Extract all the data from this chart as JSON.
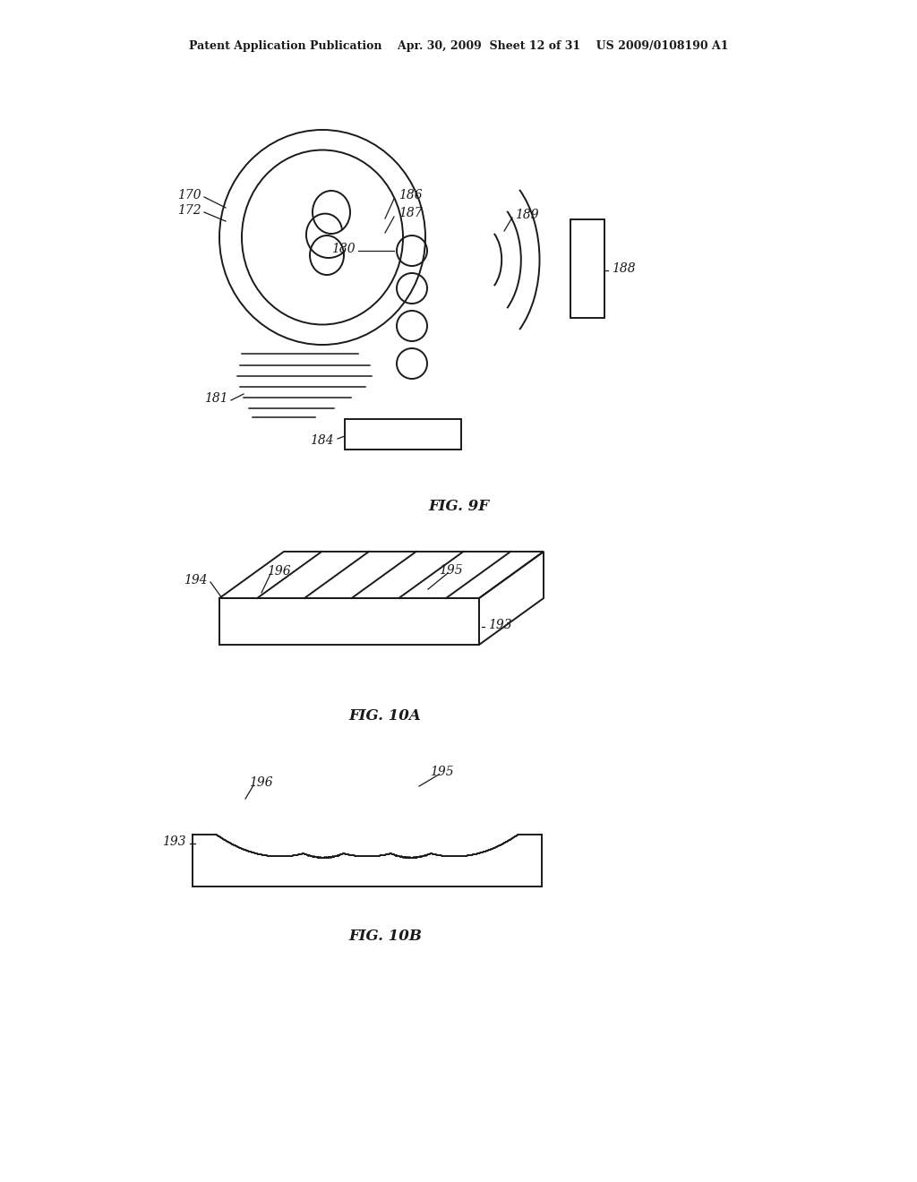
{
  "bg_color": "#ffffff",
  "line_color": "#1a1a1a",
  "header": "Patent Application Publication    Apr. 30, 2009  Sheet 12 of 31    US 2009/0108190 A1",
  "fig9f_label": "FIG. 9F",
  "fig10a_label": "FIG. 10A",
  "fig10b_label": "FIG. 10B"
}
